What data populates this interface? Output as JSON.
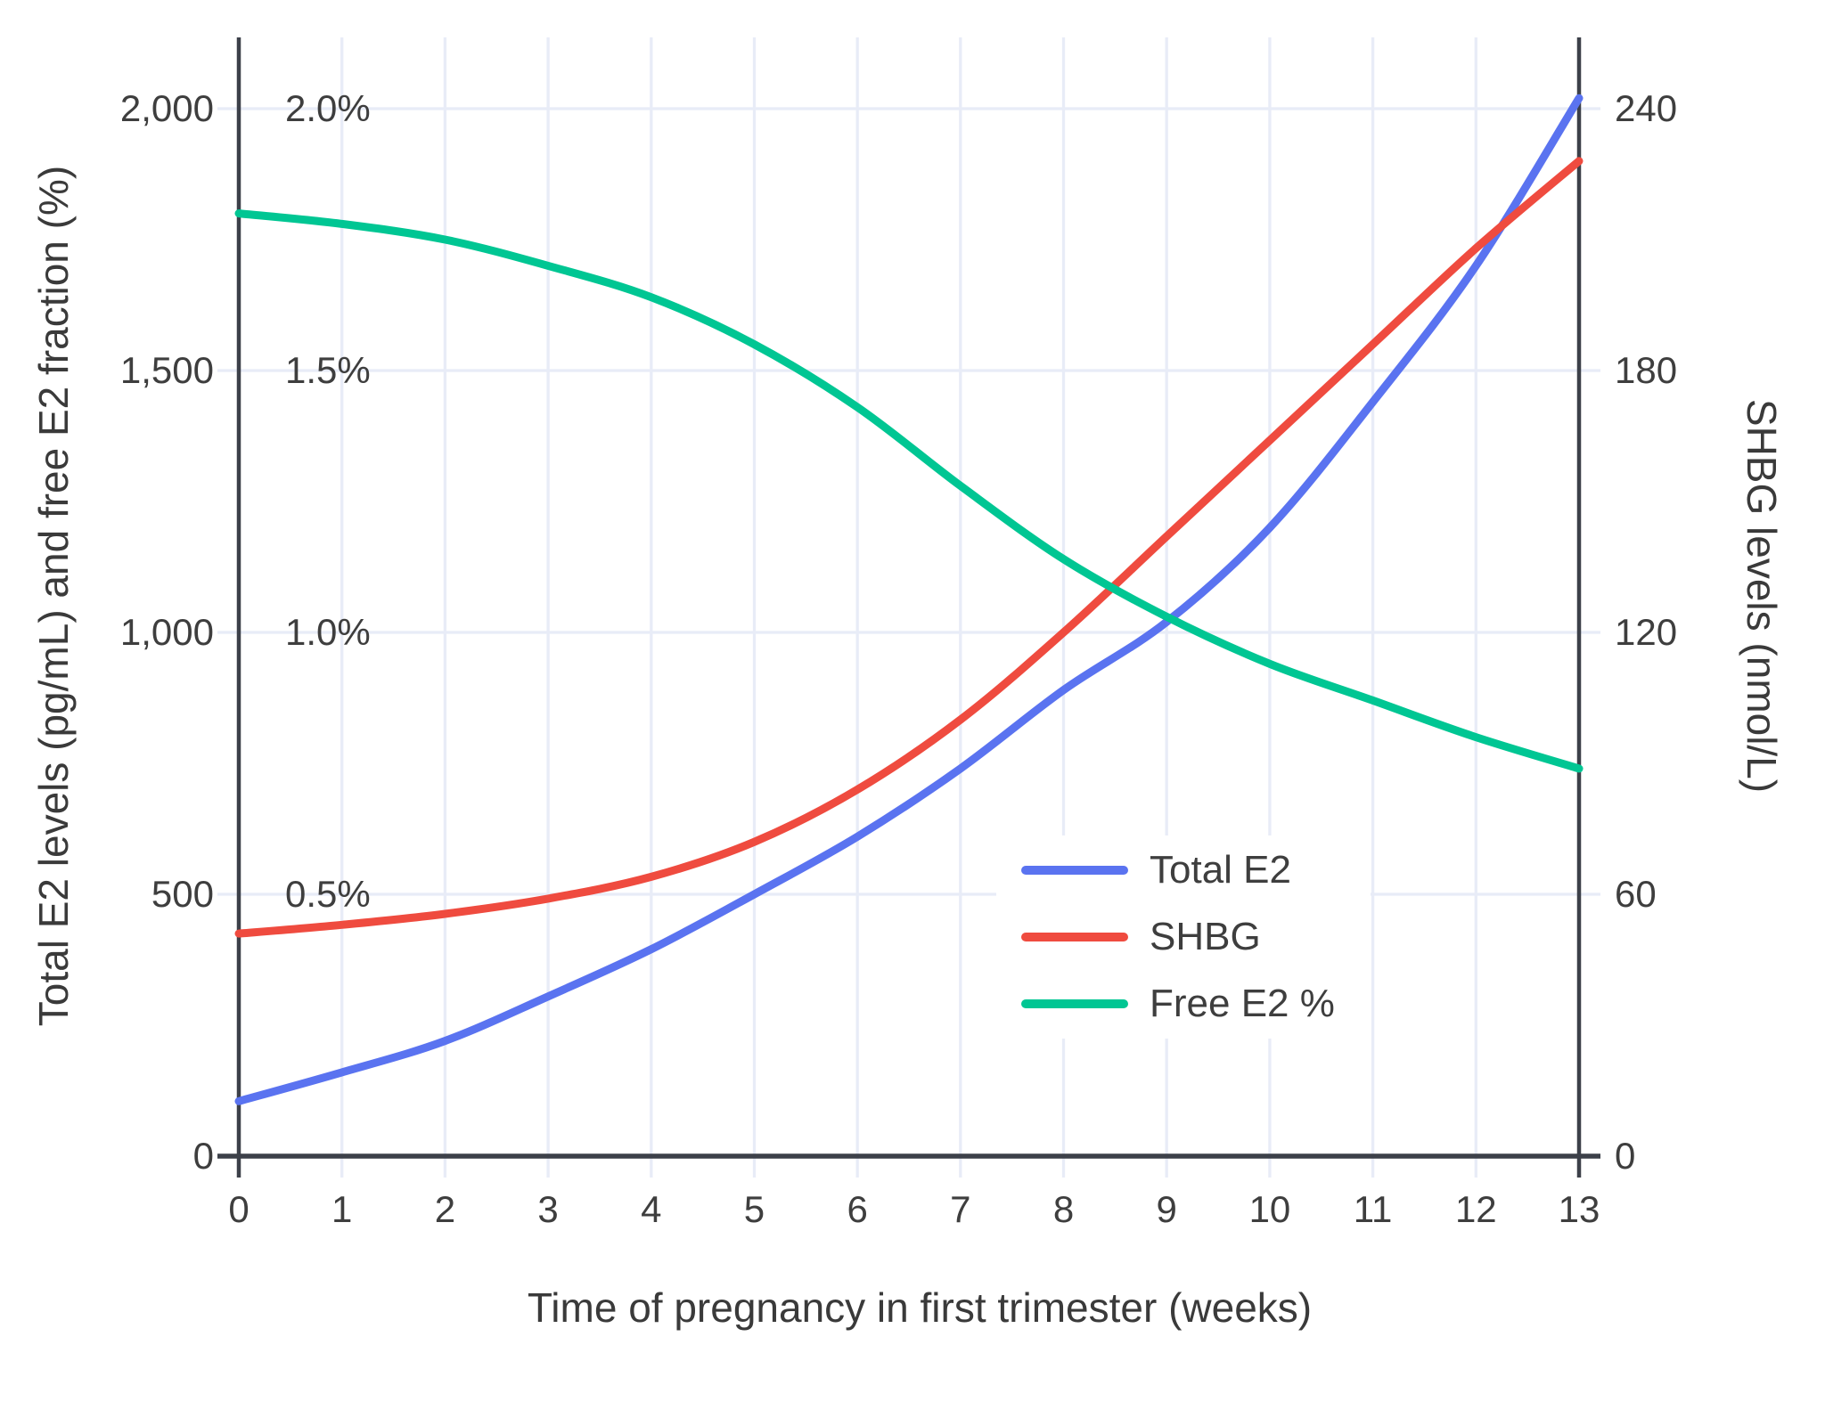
{
  "chart_data": {
    "type": "line",
    "title": "",
    "grid": true,
    "x": [
      0,
      1,
      2,
      3,
      4,
      5,
      6,
      7,
      8,
      9,
      10,
      11,
      12,
      13
    ],
    "x_axis": {
      "title": "Time of pregnancy in first trimester (weeks)",
      "tick_labels": [
        "0",
        "1",
        "2",
        "3",
        "4",
        "5",
        "6",
        "7",
        "8",
        "9",
        "10",
        "11",
        "12",
        "13"
      ],
      "range": [
        0,
        13
      ]
    },
    "left_axis": {
      "title": "Total E2 levels (pg/mL) and free E2 fraction (%)",
      "tick_values": [
        0,
        500,
        1000,
        1500,
        2000
      ],
      "tick_labels": [
        "0",
        "500",
        "1,000",
        "1,500",
        "2,000"
      ],
      "percent_tick_values": [
        500,
        1000,
        1500,
        2000
      ],
      "percent_tick_labels": [
        "0.5%",
        "1.0%",
        "1.5%",
        "2.0%"
      ],
      "range": [
        0,
        2140
      ]
    },
    "right_axis": {
      "title": "SHBG levels (nmol/L)",
      "tick_values": [
        0,
        60,
        120,
        180,
        240
      ],
      "tick_labels": [
        "0",
        "60",
        "120",
        "180",
        "240"
      ],
      "range": [
        0,
        256.8
      ]
    },
    "series": [
      {
        "name": "Total E2",
        "axis": "left",
        "unit": "pg/mL",
        "color": "#5a73f0",
        "values": [
          105,
          160,
          220,
          305,
          395,
          500,
          610,
          740,
          890,
          1020,
          1200,
          1440,
          1700,
          2020
        ]
      },
      {
        "name": "SHBG",
        "axis": "right",
        "unit": "nmol/L",
        "color": "#ef4b3f",
        "values": [
          51,
          53,
          55.5,
          59,
          64,
          72,
          84,
          100,
          120,
          142,
          164,
          186,
          208,
          228
        ]
      },
      {
        "name": "Free E2 %",
        "axis": "left_percent",
        "unit": "%",
        "color": "#00c693",
        "values": [
          1.8,
          1.78,
          1.75,
          1.7,
          1.64,
          1.55,
          1.43,
          1.28,
          1.14,
          1.03,
          0.94,
          0.87,
          0.8,
          0.74
        ]
      }
    ],
    "legend": {
      "position": "inside middle-right"
    }
  },
  "colors": {
    "background": "#ffffff",
    "grid": "#e8ecf7",
    "axis_line": "#3c4049",
    "tick_text": "#3e3e3e",
    "title_text": "#3a3a3a"
  }
}
